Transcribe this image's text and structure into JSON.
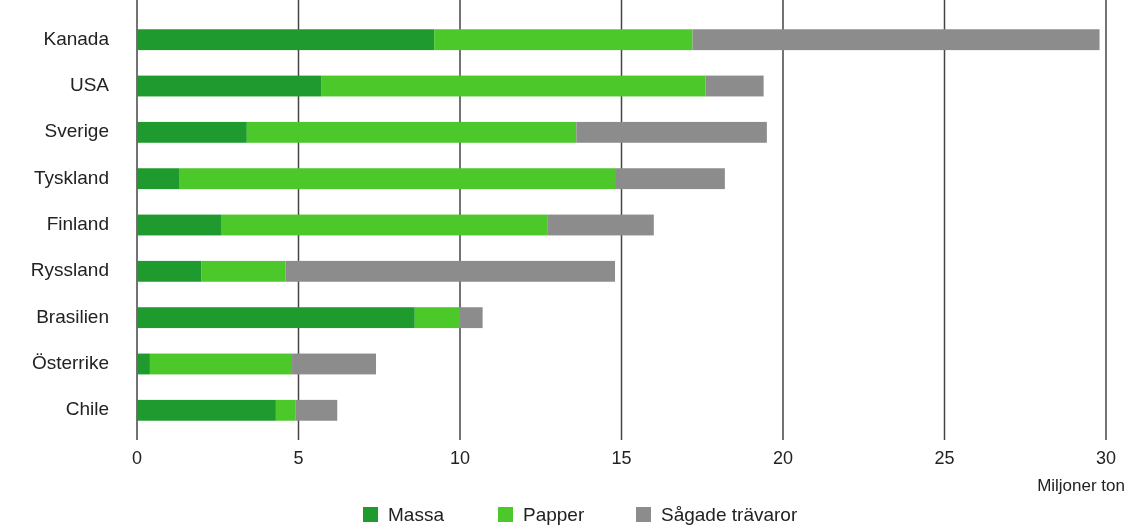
{
  "chart_data": {
    "type": "bar",
    "orientation": "horizontal",
    "stacked": true,
    "xlabel": "Miljoner ton",
    "categories": [
      "Kanada",
      "USA",
      "Sverige",
      "Tyskland",
      "Finland",
      "Ryssland",
      "Brasilien",
      "Österrike",
      "Chile"
    ],
    "series": [
      {
        "name": "Massa",
        "color": "#1f9a2e",
        "values": [
          9.2,
          5.7,
          3.4,
          1.3,
          2.6,
          2.0,
          8.6,
          0.4,
          4.3
        ]
      },
      {
        "name": "Papper",
        "color": "#4cc82a",
        "values": [
          8.0,
          11.9,
          10.2,
          13.5,
          10.1,
          2.6,
          1.4,
          4.4,
          0.6
        ]
      },
      {
        "name": "Sågade trävaror",
        "color": "#8c8c8c",
        "values": [
          12.6,
          1.8,
          5.9,
          3.4,
          3.3,
          10.2,
          0.7,
          2.6,
          1.3
        ]
      }
    ],
    "xlim": [
      0,
      30
    ],
    "xticks": [
      0,
      5,
      10,
      15,
      20,
      25,
      30
    ],
    "grid": "x",
    "legend": "bottom"
  }
}
